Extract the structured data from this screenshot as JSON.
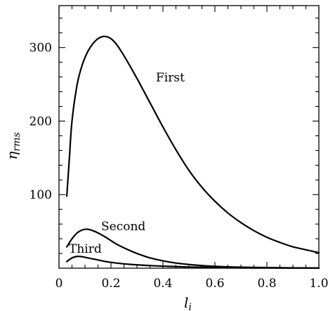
{
  "chart_data": {
    "type": "line",
    "xlabel": "l",
    "xlabel_sub": "i",
    "ylabel": "η",
    "ylabel_sub": "rms",
    "xlim": [
      0,
      1.0
    ],
    "ylim": [
      0,
      357
    ],
    "x_ticks": [
      0,
      0.2,
      0.4,
      0.6,
      0.8,
      1.0
    ],
    "x_tick_labels": [
      "0",
      "0.2",
      "0.4",
      "0.6",
      "0.8",
      "1.0"
    ],
    "y_ticks": [
      100,
      200,
      300
    ],
    "y_tick_labels": [
      "100",
      "200",
      "300"
    ],
    "grid": false,
    "series": [
      {
        "name": "First",
        "x": [
          0.03,
          0.04,
          0.05,
          0.07,
          0.09,
          0.11,
          0.13,
          0.15,
          0.17,
          0.19,
          0.21,
          0.23,
          0.26,
          0.3,
          0.35,
          0.4,
          0.45,
          0.5,
          0.55,
          0.6,
          0.65,
          0.7,
          0.75,
          0.8,
          0.85,
          0.9,
          0.95,
          1.0
        ],
        "values": [
          98,
          150,
          200,
          250,
          277,
          294,
          305,
          312,
          315,
          314,
          309,
          300,
          283,
          258,
          225,
          192,
          161,
          133,
          110,
          91,
          75,
          62,
          51,
          42,
          35,
          29,
          25,
          21
        ]
      },
      {
        "name": "Second",
        "x": [
          0.03,
          0.05,
          0.07,
          0.09,
          0.11,
          0.13,
          0.15,
          0.18,
          0.22,
          0.26,
          0.3,
          0.35,
          0.4,
          0.45,
          0.5,
          0.55,
          0.6,
          0.65,
          0.7,
          0.8,
          0.9,
          1.0
        ],
        "values": [
          29,
          40,
          48,
          52,
          53,
          51,
          48,
          42,
          33,
          26,
          20,
          14,
          10,
          7,
          5,
          3.5,
          2.5,
          1.8,
          1.3,
          0.8,
          0.4,
          0.2
        ]
      },
      {
        "name": "Third",
        "x": [
          0.03,
          0.05,
          0.07,
          0.09,
          0.11,
          0.14,
          0.18,
          0.22,
          0.28,
          0.35,
          0.42,
          0.5,
          0.6,
          0.7,
          0.8,
          0.9,
          1.0
        ],
        "values": [
          9,
          14,
          16,
          15.5,
          14,
          12,
          9,
          7,
          5,
          3.5,
          2.5,
          1.6,
          0.9,
          0.5,
          0.3,
          0.2,
          0.1
        ]
      }
    ]
  }
}
